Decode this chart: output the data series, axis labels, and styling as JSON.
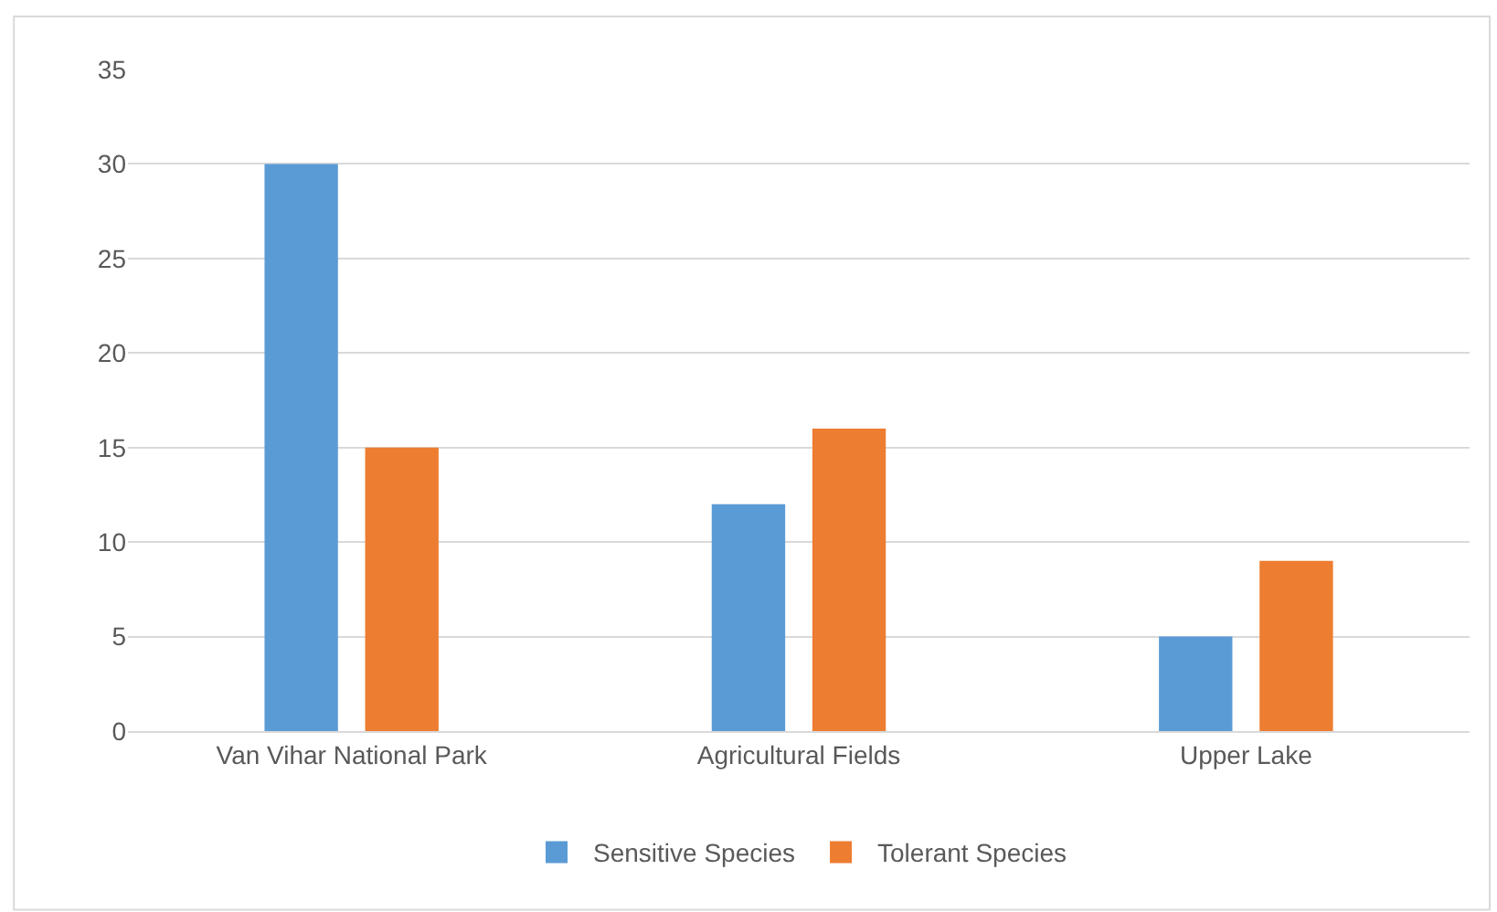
{
  "chart_data": {
    "type": "bar",
    "categories": [
      "Van Vihar National Park",
      "Agricultural Fields",
      "Upper Lake"
    ],
    "series": [
      {
        "name": "Sensitive Species",
        "color": "#5b9bd5",
        "values": [
          30,
          12,
          5
        ]
      },
      {
        "name": "Tolerant Species",
        "color": "#ed7d31",
        "values": [
          15,
          16,
          9
        ]
      }
    ],
    "ylim": [
      0,
      35
    ],
    "yticks": [
      0,
      5,
      10,
      15,
      20,
      25,
      30,
      35
    ],
    "grid": "y",
    "legend": "bottom"
  }
}
